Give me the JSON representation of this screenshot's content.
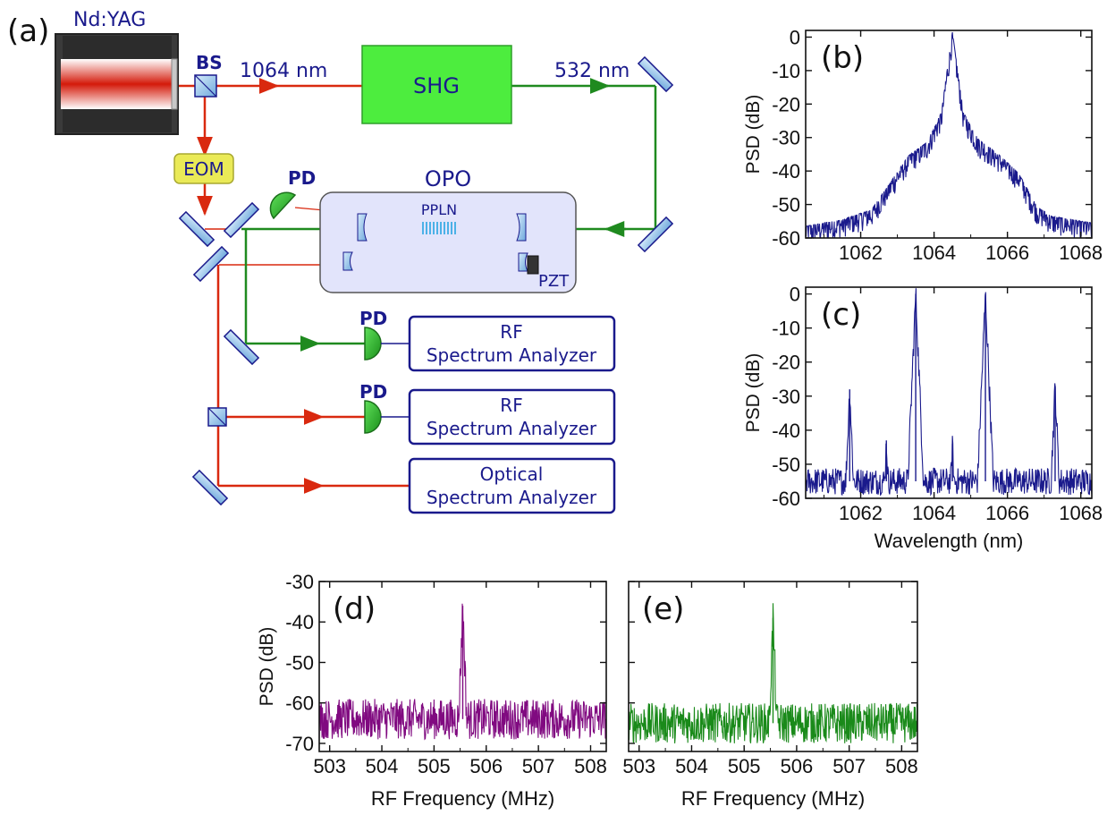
{
  "schematic": {
    "panel_label": "(a)",
    "laser_label": "Nd:YAG",
    "bs_label": "BS",
    "beam_1064_label": "1064 nm",
    "shg_label": "SHG",
    "beam_532_label": "532 nm",
    "eom_label": "EOM",
    "pd_top_label": "PD",
    "opo_label": "OPO",
    "ppln_label": "PPLN",
    "pzt_label": "PZT",
    "pd1_label": "PD",
    "pd2_label": "PD",
    "box1_line1": "RF",
    "box1_line2": "Spectrum Analyzer",
    "box2_line1": "RF",
    "box2_line2": "Spectrum Analyzer",
    "box3_line1": "Optical",
    "box3_line2": "Spectrum Analyzer",
    "colors": {
      "red_beam": "#d9290f",
      "green_beam": "#1f8a1f",
      "shg_fill": "#4ded3e",
      "eom_fill": "#eaea57",
      "opo_fill": "#e2e4fb",
      "navy": "#1a1a8c"
    }
  },
  "chart_data": [
    {
      "id": "b",
      "type": "line",
      "panel_label": "(b)",
      "ylabel": "PSD (dB)",
      "xlabel": "",
      "xlim": [
        1060.5,
        1068.3
      ],
      "ylim": [
        -60,
        2
      ],
      "xticks": [
        1062,
        1064,
        1066,
        1068
      ],
      "yticks": [
        0,
        -10,
        -20,
        -30,
        -40,
        -50,
        -60
      ],
      "color": "#1a1a8c",
      "envelope": {
        "x": [
          1060.5,
          1061.5,
          1062.3,
          1062.8,
          1063.3,
          1063.8,
          1064.2,
          1064.5,
          1064.8,
          1065.2,
          1065.7,
          1066.3,
          1066.8,
          1067.2,
          1068.3
        ],
        "y": [
          -58,
          -56,
          -53,
          -45,
          -37,
          -33,
          -24,
          0,
          -24,
          -32,
          -36,
          -42,
          -52,
          -55,
          -57
        ]
      },
      "noise_amp": 4
    },
    {
      "id": "c",
      "type": "line",
      "panel_label": "(c)",
      "ylabel": "PSD (dB)",
      "xlabel": "Wavelength (nm)",
      "xlim": [
        1060.5,
        1068.3
      ],
      "ylim": [
        -60,
        2
      ],
      "xticks": [
        1062,
        1064,
        1066,
        1068
      ],
      "yticks": [
        0,
        -10,
        -20,
        -30,
        -40,
        -50,
        -60
      ],
      "color": "#1a1a8c",
      "baseline": -55,
      "peaks": [
        {
          "x": 1061.7,
          "y": -28
        },
        {
          "x": 1062.7,
          "y": -43
        },
        {
          "x": 1063.5,
          "y": 0
        },
        {
          "x": 1064.5,
          "y": -44
        },
        {
          "x": 1065.4,
          "y": 0
        },
        {
          "x": 1067.3,
          "y": -27
        }
      ],
      "noise_amp": 4
    },
    {
      "id": "d",
      "type": "line",
      "panel_label": "(d)",
      "ylabel": "PSD (dB)",
      "xlabel": "RF  Frequency (MHz)",
      "xlim": [
        502.8,
        508.3
      ],
      "ylim": [
        -72,
        -30
      ],
      "xticks": [
        503,
        504,
        505,
        506,
        507,
        508
      ],
      "yticks": [
        -30,
        -40,
        -50,
        -60,
        -70
      ],
      "color": "#800a80",
      "baseline": -64,
      "peaks": [
        {
          "x": 505.55,
          "y": -36
        }
      ],
      "noise_amp": 5
    },
    {
      "id": "e",
      "type": "line",
      "panel_label": "(e)",
      "ylabel": "",
      "xlabel": "RF  Frequency (MHz)",
      "xlim": [
        502.8,
        508.3
      ],
      "ylim": [
        -72,
        -30
      ],
      "xticks": [
        503,
        504,
        505,
        506,
        507,
        508
      ],
      "yticks": [],
      "color": "#1a8a1a",
      "baseline": -65,
      "peaks": [
        {
          "x": 505.55,
          "y": -39
        }
      ],
      "noise_amp": 5
    }
  ]
}
